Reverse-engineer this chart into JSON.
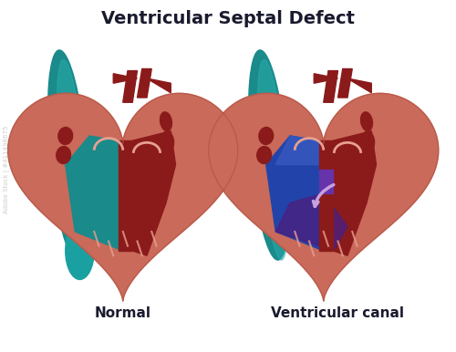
{
  "title": "Ventricular Septal Defect",
  "label_normal": "Normal",
  "label_defect": "Ventricular canal",
  "bg_color": "#ffffff",
  "title_color": "#1a1a2e",
  "label_color": "#1a1a2e",
  "title_fontsize": 14,
  "label_fontsize": 11,
  "heart_outer_color": "#c96a5a",
  "heart_dark_red": "#8b1a1a",
  "heart_medium_red": "#a83232",
  "teal_color": "#1a8a8a",
  "teal_dark": "#0d6b6b",
  "pink_inner": "#e8a090",
  "purple_fill": "#4a2080",
  "blue_fill": "#2244aa",
  "purple_light": "#7a40c0",
  "arrow_color": "#c8a0e0",
  "watermark_color": "#cccccc"
}
